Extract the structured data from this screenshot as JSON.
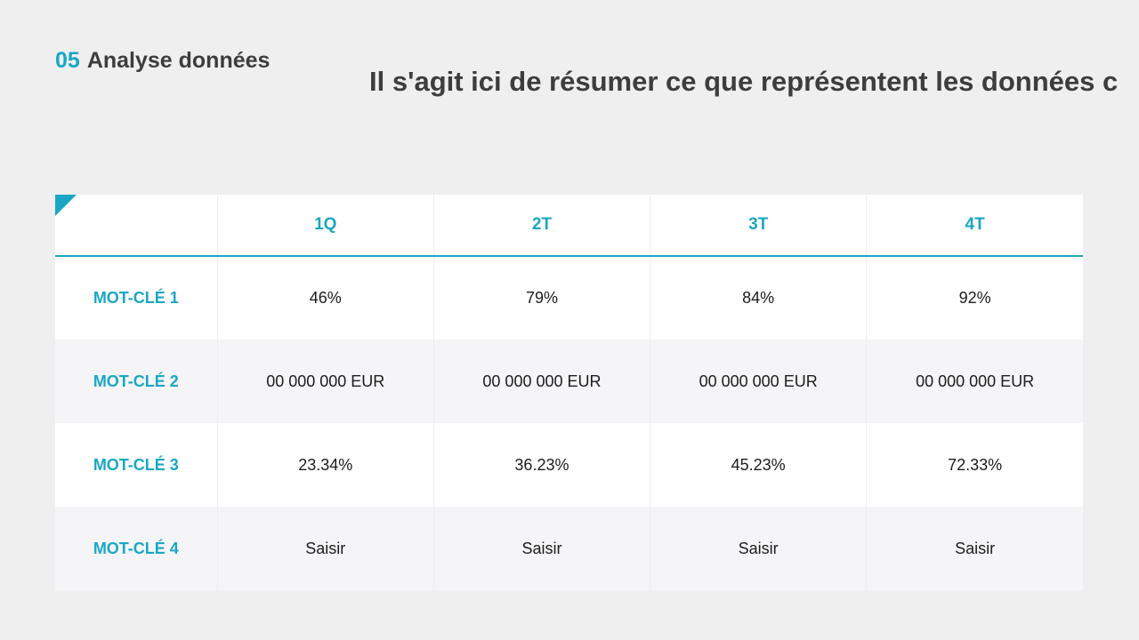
{
  "section": {
    "number": "05",
    "title": "Analyse données"
  },
  "headline": "Il s'agit ici de résumer ce que représentent les données c",
  "table": {
    "columns": [
      "1Q",
      "2T",
      "3T",
      "4T"
    ],
    "rows": [
      {
        "label": "MOT-CLÉ 1",
        "values": [
          "46%",
          "79%",
          "84%",
          "92%"
        ]
      },
      {
        "label": "MOT-CLÉ 2",
        "values": [
          "00 000 000 EUR",
          "00 000 000 EUR",
          "00 000 000 EUR",
          "00 000 000 EUR"
        ]
      },
      {
        "label": "MOT-CLÉ 3",
        "values": [
          "23.34%",
          "36.23%",
          "45.23%",
          "72.33%"
        ]
      },
      {
        "label": "MOT-CLÉ 4",
        "values": [
          "Saisir",
          "Saisir",
          "Saisir",
          "Saisir"
        ]
      }
    ]
  },
  "colors": {
    "accent": "#1aa7c4",
    "text": "#3d3d3d",
    "background": "#efeff0",
    "row_alt": "#f5f5f7"
  }
}
